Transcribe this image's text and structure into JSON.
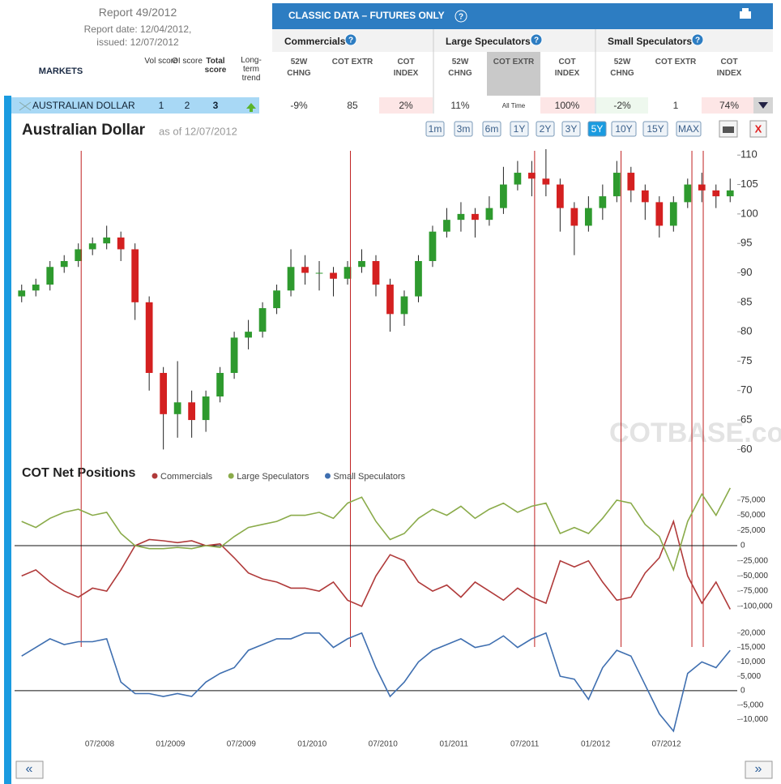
{
  "report": {
    "title": "Report 49/2012",
    "date": "Report date: 12/04/2012,",
    "issued": "issued: 12/07/2012"
  },
  "table": {
    "banner": "CLASSIC DATA – FUTURES ONLY",
    "help": "?",
    "markets": "MARKETS",
    "left_headers": [
      "Vol score",
      "OI score",
      "Total score",
      "Long-term trend"
    ],
    "groups": [
      {
        "name": "Commercials",
        "columns": [
          "52W CHNG",
          "COT EXTR",
          "COT INDEX"
        ]
      },
      {
        "name": "Large Speculators",
        "columns": [
          "52W CHNG",
          "COT EXTR",
          "COT INDEX"
        ]
      },
      {
        "name": "Small Speculators",
        "columns": [
          "52W CHNG",
          "COT EXTR",
          "COT INDEX"
        ]
      }
    ],
    "row": {
      "market": "AUSTRALIAN DOLLAR",
      "vol": 1,
      "oi": 2,
      "total": 3,
      "cells": [
        "-9%",
        "85",
        "2%",
        "11%",
        "All Time",
        "100%",
        "-2%",
        "1",
        "74%"
      ]
    }
  },
  "controls": {
    "title": "Australian Dollar",
    "as_of": "as of 12/07/2012",
    "ranges": [
      "1m",
      "3m",
      "6m",
      "1Y",
      "2Y",
      "3Y",
      "5Y",
      "10Y",
      "15Y",
      "MAX"
    ],
    "active_range": "5Y",
    "close": "X",
    "prev": "«",
    "next": "»",
    "watermark": "COTBASE.com"
  },
  "chart_data": [
    {
      "type": "candlestick",
      "up_color": "#2e9a2e",
      "down_color": "#d42020",
      "signal_color": "#c02020",
      "x": [
        2007.95,
        2008.05,
        2008.15,
        2008.25,
        2008.35,
        2008.45,
        2008.55,
        2008.65,
        2008.75,
        2008.85,
        2008.95,
        2009.05,
        2009.15,
        2009.25,
        2009.35,
        2009.45,
        2009.55,
        2009.65,
        2009.75,
        2009.85,
        2009.95,
        2010.05,
        2010.15,
        2010.25,
        2010.35,
        2010.45,
        2010.55,
        2010.65,
        2010.75,
        2010.85,
        2010.95,
        2011.05,
        2011.15,
        2011.25,
        2011.35,
        2011.45,
        2011.55,
        2011.65,
        2011.75,
        2011.85,
        2011.95,
        2012.05,
        2012.15,
        2012.25,
        2012.35,
        2012.45,
        2012.55,
        2012.65,
        2012.75,
        2012.85,
        2012.95
      ],
      "open": [
        86,
        87,
        88,
        91,
        92,
        94,
        95,
        96,
        94,
        85,
        73,
        66,
        68,
        65,
        69,
        73,
        79,
        80,
        84,
        87,
        91,
        90,
        90,
        89,
        91,
        92,
        88,
        83,
        86,
        92,
        97,
        99,
        100,
        99,
        101,
        105,
        107,
        106,
        105,
        101,
        98,
        101,
        103,
        107,
        104,
        102,
        98,
        102,
        105,
        104,
        103
      ],
      "high": [
        88,
        89,
        92,
        93,
        95,
        96,
        98,
        97,
        95,
        86,
        74,
        75,
        70,
        70,
        74,
        80,
        82,
        85,
        88,
        94,
        93,
        92,
        91,
        92,
        94,
        93,
        89,
        87,
        93,
        98,
        101,
        102,
        101,
        103,
        108,
        109,
        109,
        111,
        106,
        102,
        103,
        105,
        109,
        108,
        105,
        103,
        103,
        106,
        107,
        105,
        106
      ],
      "low": [
        85,
        86,
        87,
        90,
        91,
        93,
        94,
        92,
        82,
        70,
        60,
        62,
        62,
        63,
        68,
        72,
        77,
        79,
        83,
        86,
        88,
        87,
        86,
        88,
        90,
        86,
        80,
        81,
        85,
        91,
        96,
        97,
        96,
        98,
        100,
        104,
        103,
        103,
        97,
        93,
        97,
        99,
        102,
        102,
        99,
        96,
        97,
        101,
        102,
        101,
        102
      ],
      "close": [
        87,
        88,
        91,
        92,
        94,
        95,
        96,
        94,
        85,
        73,
        66,
        68,
        65,
        69,
        73,
        79,
        80,
        84,
        87,
        91,
        90,
        90,
        89,
        91,
        92,
        88,
        83,
        86,
        92,
        97,
        99,
        100,
        99,
        101,
        105,
        107,
        106,
        105,
        101,
        98,
        101,
        103,
        107,
        104,
        102,
        98,
        102,
        105,
        104,
        103,
        104
      ],
      "signals": [
        2008.37,
        2010.27,
        2011.57,
        2012.18,
        2012.68,
        2012.76
      ],
      "xlim": [
        2007.9,
        2013.0
      ],
      "ylim": [
        58.4,
        111
      ],
      "yticks": [
        60,
        65,
        70,
        75,
        80,
        85,
        90,
        95,
        100,
        105,
        110
      ]
    },
    {
      "type": "line",
      "title": "COT Net Positions",
      "x": [
        2007.95,
        2008.05,
        2008.15,
        2008.25,
        2008.35,
        2008.45,
        2008.55,
        2008.65,
        2008.75,
        2008.85,
        2008.95,
        2009.05,
        2009.15,
        2009.25,
        2009.35,
        2009.45,
        2009.55,
        2009.65,
        2009.75,
        2009.85,
        2009.95,
        2010.05,
        2010.15,
        2010.25,
        2010.35,
        2010.45,
        2010.55,
        2010.65,
        2010.75,
        2010.85,
        2010.95,
        2011.05,
        2011.15,
        2011.25,
        2011.35,
        2011.45,
        2011.55,
        2011.65,
        2011.75,
        2011.85,
        2011.95,
        2012.05,
        2012.15,
        2012.25,
        2012.35,
        2012.45,
        2012.55,
        2012.65,
        2012.75,
        2012.85,
        2012.95
      ],
      "series": [
        {
          "name": "Commercials",
          "color": "#b03a3a",
          "values": [
            -50000,
            -40000,
            -60000,
            -75000,
            -85000,
            -70000,
            -75000,
            -40000,
            0,
            10000,
            8000,
            5000,
            8000,
            0,
            3000,
            -20000,
            -45000,
            -55000,
            -60000,
            -70000,
            -70000,
            -75000,
            -60000,
            -90000,
            -100000,
            -50000,
            -15000,
            -25000,
            -60000,
            -75000,
            -65000,
            -85000,
            -60000,
            -75000,
            -90000,
            -70000,
            -85000,
            -95000,
            -25000,
            -35000,
            -25000,
            -60000,
            -90000,
            -85000,
            -45000,
            -20000,
            40000,
            -50000,
            -95000,
            -60000,
            -105000
          ]
        },
        {
          "name": "Large Speculators",
          "color": "#8aab4a",
          "values": [
            40000,
            30000,
            45000,
            55000,
            60000,
            50000,
            55000,
            20000,
            0,
            -5000,
            -5000,
            -3000,
            -5000,
            0,
            -3000,
            15000,
            30000,
            35000,
            40000,
            50000,
            50000,
            55000,
            45000,
            70000,
            80000,
            40000,
            10000,
            20000,
            45000,
            60000,
            50000,
            65000,
            45000,
            60000,
            70000,
            55000,
            65000,
            70000,
            20000,
            30000,
            20000,
            45000,
            75000,
            70000,
            35000,
            15000,
            -40000,
            40000,
            85000,
            50000,
            95000
          ]
        },
        {
          "name": "Small Speculators",
          "color": "#3f6fb0",
          "axis": "y2",
          "values": [
            12000,
            15000,
            18000,
            16000,
            17000,
            17000,
            18000,
            3000,
            -1000,
            -1000,
            -2000,
            -1000,
            -2000,
            3000,
            6000,
            8000,
            14000,
            16000,
            18000,
            18000,
            20000,
            20000,
            15000,
            18000,
            20000,
            8000,
            -2000,
            3000,
            10000,
            14000,
            16000,
            18000,
            15000,
            16000,
            19000,
            15000,
            18000,
            20000,
            5000,
            4000,
            -3000,
            8000,
            14000,
            12000,
            2000,
            -8000,
            -14000,
            6000,
            10000,
            8000,
            14000
          ]
        }
      ],
      "xlim": [
        2007.9,
        2013.0
      ],
      "xticks": [
        {
          "value": 2008.5,
          "label": "07/2008"
        },
        {
          "value": 2009.0,
          "label": "01/2009"
        },
        {
          "value": 2009.5,
          "label": "07/2009"
        },
        {
          "value": 2010.0,
          "label": "01/2010"
        },
        {
          "value": 2010.5,
          "label": "07/2010"
        },
        {
          "value": 2011.0,
          "label": "01/2011"
        },
        {
          "value": 2011.5,
          "label": "07/2011"
        },
        {
          "value": 2012.0,
          "label": "01/2012"
        },
        {
          "value": 2012.5,
          "label": "07/2012"
        }
      ],
      "ylim": [
        -119000,
        97600
      ],
      "yticks": [
        {
          "value": 75000,
          "label": "75,000"
        },
        {
          "value": 50000,
          "label": "50,000"
        },
        {
          "value": 25000,
          "label": "25,000"
        },
        0,
        {
          "value": -25000,
          "label": "-25,000"
        },
        {
          "value": -50000,
          "label": "-50,000"
        },
        {
          "value": -75000,
          "label": "-75,000"
        },
        {
          "value": -100000,
          "label": "-100,000"
        }
      ],
      "y2lim": [
        -15200,
        25000
      ],
      "y2ticks": [
        {
          "value": 20000,
          "label": "20,000"
        },
        {
          "value": 15000,
          "label": "15,000"
        },
        {
          "value": 10000,
          "label": "10,000"
        },
        {
          "value": 5000,
          "label": "5,000"
        },
        0,
        {
          "value": -5000,
          "label": "-5,000"
        },
        {
          "value": -10000,
          "label": "-10,000"
        }
      ]
    }
  ]
}
